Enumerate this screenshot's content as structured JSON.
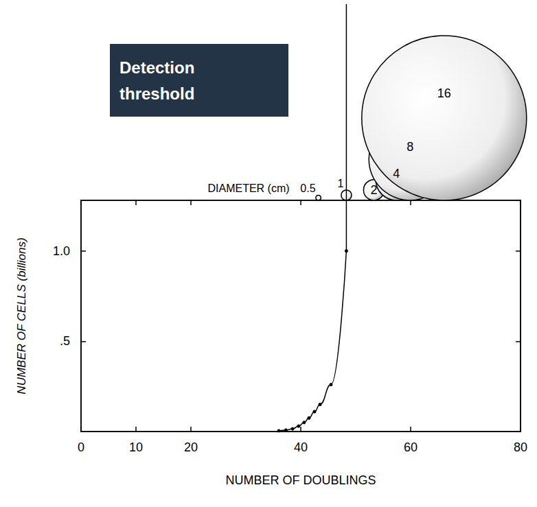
{
  "chart_data": {
    "type": "line",
    "x_label": "NUMBER OF DOUBLINGS",
    "y_label": "NUMBER OF CELLS (billions)",
    "x": [
      36.0,
      37.3,
      38.5,
      39.6,
      40.6,
      41.5,
      42.5,
      43.5,
      45.5,
      48.3
    ],
    "values": [
      0.004,
      0.008,
      0.015,
      0.03,
      0.05,
      0.075,
      0.11,
      0.15,
      0.26,
      1.0
    ],
    "color": "#000000",
    "marker": "circle",
    "xlim": [
      0,
      80
    ],
    "xticks": [
      0,
      10,
      20,
      40,
      60,
      80
    ],
    "ylim": [
      0,
      1.28
    ],
    "yticks": [
      {
        "value": 0.5,
        "label": ".5"
      },
      {
        "value": 1,
        "label": "1.0"
      }
    ],
    "grid": false,
    "annotations": [
      {
        "text": "Detection threshold"
      }
    ],
    "diameters": {
      "label": "DIAMETER (cm)",
      "x": [
        43.2,
        48.3,
        53.3,
        57.4,
        59.9,
        66.1
      ],
      "values": [
        0.5,
        1,
        2,
        4,
        8,
        16
      ]
    }
  }
}
